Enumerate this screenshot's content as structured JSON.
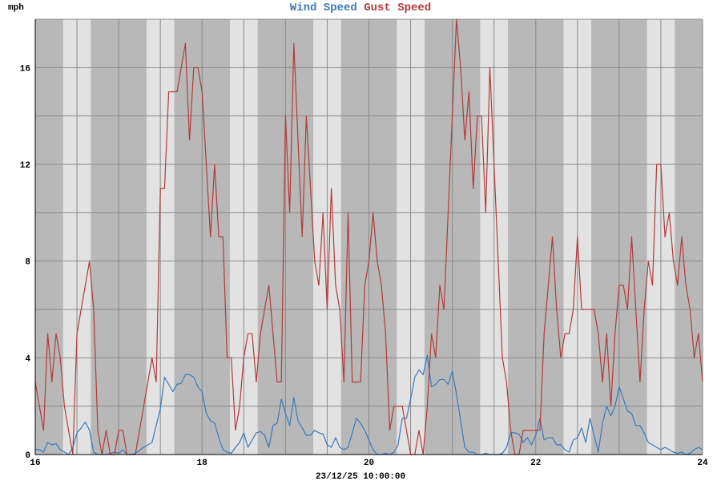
{
  "chart_data": {
    "type": "line",
    "title": [
      "Wind Speed",
      "Gust Speed"
    ],
    "ylabel": "mph",
    "xlabel": "23/12/25 10:00:00",
    "xlim": [
      16,
      24
    ],
    "ylim": [
      0,
      18
    ],
    "x_ticks": [
      16,
      18,
      20,
      22,
      24
    ],
    "y_ticks": [
      0,
      4,
      8,
      12,
      16
    ],
    "grid": true,
    "colors": {
      "wind": "#3a7ab8",
      "gust": "#b23a3a",
      "band_dark": "#b8b8b8",
      "band_light": "#e2e2e2",
      "grid": "#8a8a8a"
    },
    "series": [
      {
        "name": "Wind Speed",
        "color": "#3a7ab8",
        "points": [
          [
            16.0,
            0.2
          ],
          [
            16.05,
            0.2
          ],
          [
            16.1,
            0.1
          ],
          [
            16.15,
            0.5
          ],
          [
            16.2,
            0.4
          ],
          [
            16.25,
            0.45
          ],
          [
            16.3,
            0.2
          ],
          [
            16.35,
            0.1
          ],
          [
            16.4,
            0.0
          ],
          [
            16.45,
            0.3
          ],
          [
            16.5,
            0.9
          ],
          [
            16.55,
            1.1
          ],
          [
            16.6,
            1.35
          ],
          [
            16.65,
            1.0
          ],
          [
            16.7,
            0.1
          ],
          [
            16.75,
            0.0
          ],
          [
            16.8,
            0.0
          ],
          [
            16.85,
            0.0
          ],
          [
            16.9,
            0.05
          ],
          [
            16.95,
            0.1
          ],
          [
            17.0,
            0.05
          ],
          [
            17.05,
            0.2
          ],
          [
            17.1,
            0.0
          ],
          [
            17.15,
            0.0
          ],
          [
            17.2,
            0.05
          ],
          [
            17.3,
            0.3
          ],
          [
            17.35,
            0.4
          ],
          [
            17.4,
            0.5
          ],
          [
            17.45,
            1.2
          ],
          [
            17.5,
            1.9
          ],
          [
            17.55,
            3.2
          ],
          [
            17.6,
            2.9
          ],
          [
            17.65,
            2.6
          ],
          [
            17.7,
            2.9
          ],
          [
            17.75,
            2.95
          ],
          [
            17.8,
            3.3
          ],
          [
            17.85,
            3.3
          ],
          [
            17.9,
            3.2
          ],
          [
            17.95,
            2.8
          ],
          [
            18.0,
            2.6
          ],
          [
            18.05,
            1.7
          ],
          [
            18.1,
            1.4
          ],
          [
            18.15,
            1.3
          ],
          [
            18.2,
            0.7
          ],
          [
            18.25,
            0.2
          ],
          [
            18.3,
            0.1
          ],
          [
            18.35,
            0.05
          ],
          [
            18.4,
            0.3
          ],
          [
            18.45,
            0.5
          ],
          [
            18.5,
            0.9
          ],
          [
            18.55,
            0.3
          ],
          [
            18.6,
            0.6
          ],
          [
            18.65,
            0.9
          ],
          [
            18.7,
            0.95
          ],
          [
            18.75,
            0.8
          ],
          [
            18.8,
            0.3
          ],
          [
            18.85,
            1.2
          ],
          [
            18.9,
            1.3
          ],
          [
            18.95,
            2.3
          ],
          [
            19.0,
            1.7
          ],
          [
            19.05,
            1.2
          ],
          [
            19.1,
            2.35
          ],
          [
            19.15,
            1.4
          ],
          [
            19.2,
            1.1
          ],
          [
            19.25,
            0.8
          ],
          [
            19.3,
            0.8
          ],
          [
            19.35,
            1.0
          ],
          [
            19.4,
            0.9
          ],
          [
            19.45,
            0.85
          ],
          [
            19.5,
            0.4
          ],
          [
            19.55,
            0.3
          ],
          [
            19.6,
            0.7
          ],
          [
            19.65,
            0.3
          ],
          [
            19.7,
            0.2
          ],
          [
            19.75,
            0.3
          ],
          [
            19.8,
            0.9
          ],
          [
            19.85,
            1.5
          ],
          [
            19.9,
            1.3
          ],
          [
            19.95,
            1.0
          ],
          [
            20.0,
            0.6
          ],
          [
            20.05,
            0.2
          ],
          [
            20.1,
            0.0
          ],
          [
            20.15,
            0.0
          ],
          [
            20.2,
            0.05
          ],
          [
            20.25,
            0.0
          ],
          [
            20.3,
            0.1
          ],
          [
            20.35,
            0.4
          ],
          [
            20.4,
            1.5
          ],
          [
            20.45,
            1.5
          ],
          [
            20.5,
            2.3
          ],
          [
            20.55,
            3.2
          ],
          [
            20.6,
            3.5
          ],
          [
            20.65,
            3.3
          ],
          [
            20.7,
            4.1
          ],
          [
            20.75,
            2.8
          ],
          [
            20.8,
            2.9
          ],
          [
            20.85,
            3.1
          ],
          [
            20.9,
            3.1
          ],
          [
            20.95,
            2.9
          ],
          [
            21.0,
            3.45
          ],
          [
            21.05,
            2.5
          ],
          [
            21.1,
            1.4
          ],
          [
            21.15,
            0.3
          ],
          [
            21.2,
            0.1
          ],
          [
            21.25,
            0.1
          ],
          [
            21.3,
            0.0
          ],
          [
            21.35,
            0.0
          ],
          [
            21.4,
            0.05
          ],
          [
            21.45,
            0.0
          ],
          [
            21.5,
            0.0
          ],
          [
            21.55,
            0.0
          ],
          [
            21.6,
            0.05
          ],
          [
            21.65,
            0.3
          ],
          [
            21.7,
            0.9
          ],
          [
            21.75,
            0.9
          ],
          [
            21.8,
            0.85
          ],
          [
            21.85,
            0.5
          ],
          [
            21.9,
            0.7
          ],
          [
            21.95,
            0.4
          ],
          [
            22.0,
            0.8
          ],
          [
            22.05,
            1.5
          ],
          [
            22.1,
            0.6
          ],
          [
            22.15,
            0.7
          ],
          [
            22.2,
            0.7
          ],
          [
            22.25,
            0.4
          ],
          [
            22.3,
            0.4
          ],
          [
            22.35,
            0.2
          ],
          [
            22.4,
            0.1
          ],
          [
            22.45,
            0.6
          ],
          [
            22.5,
            0.7
          ],
          [
            22.55,
            1.1
          ],
          [
            22.6,
            0.5
          ],
          [
            22.65,
            1.5
          ],
          [
            22.7,
            0.8
          ],
          [
            22.75,
            0.1
          ],
          [
            22.8,
            1.3
          ],
          [
            22.85,
            2.0
          ],
          [
            22.9,
            1.6
          ],
          [
            22.95,
            2.0
          ],
          [
            23.0,
            2.8
          ],
          [
            23.05,
            2.3
          ],
          [
            23.1,
            1.8
          ],
          [
            23.15,
            1.7
          ],
          [
            23.2,
            1.2
          ],
          [
            23.25,
            1.2
          ],
          [
            23.3,
            0.9
          ],
          [
            23.35,
            0.5
          ],
          [
            23.4,
            0.4
          ],
          [
            23.45,
            0.3
          ],
          [
            23.5,
            0.2
          ],
          [
            23.55,
            0.3
          ],
          [
            23.6,
            0.2
          ],
          [
            23.65,
            0.1
          ],
          [
            23.7,
            0.05
          ],
          [
            23.75,
            0.1
          ],
          [
            23.8,
            0.0
          ],
          [
            23.85,
            0.05
          ],
          [
            23.9,
            0.2
          ],
          [
            23.95,
            0.3
          ],
          [
            24.0,
            0.2
          ]
        ]
      },
      {
        "name": "Gust Speed",
        "color": "#b23a3a",
        "points": [
          [
            16.0,
            3.0
          ],
          [
            16.05,
            2.0
          ],
          [
            16.1,
            1.0
          ],
          [
            16.15,
            5.0
          ],
          [
            16.2,
            3.0
          ],
          [
            16.25,
            5.0
          ],
          [
            16.3,
            4.0
          ],
          [
            16.35,
            2.0
          ],
          [
            16.4,
            1.0
          ],
          [
            16.45,
            0.0
          ],
          [
            16.5,
            5.0
          ],
          [
            16.55,
            6.0
          ],
          [
            16.6,
            7.0
          ],
          [
            16.65,
            8.0
          ],
          [
            16.7,
            6.0
          ],
          [
            16.75,
            1.0
          ],
          [
            16.8,
            0.0
          ],
          [
            16.85,
            1.0
          ],
          [
            16.9,
            0.0
          ],
          [
            16.95,
            0.0
          ],
          [
            17.0,
            1.0
          ],
          [
            17.05,
            1.0
          ],
          [
            17.1,
            0.0
          ],
          [
            17.15,
            0.0
          ],
          [
            17.2,
            0.0
          ],
          [
            17.3,
            2.0
          ],
          [
            17.35,
            3.0
          ],
          [
            17.4,
            4.0
          ],
          [
            17.45,
            3.0
          ],
          [
            17.5,
            11.0
          ],
          [
            17.55,
            11.0
          ],
          [
            17.6,
            15.0
          ],
          [
            17.65,
            15.0
          ],
          [
            17.7,
            15.0
          ],
          [
            17.75,
            16.0
          ],
          [
            17.8,
            17.0
          ],
          [
            17.85,
            13.0
          ],
          [
            17.9,
            16.0
          ],
          [
            17.95,
            16.0
          ],
          [
            18.0,
            15.0
          ],
          [
            18.05,
            12.0
          ],
          [
            18.1,
            9.0
          ],
          [
            18.15,
            12.0
          ],
          [
            18.2,
            9.0
          ],
          [
            18.25,
            9.0
          ],
          [
            18.3,
            4.0
          ],
          [
            18.35,
            4.0
          ],
          [
            18.4,
            1.0
          ],
          [
            18.45,
            2.0
          ],
          [
            18.5,
            4.0
          ],
          [
            18.55,
            5.0
          ],
          [
            18.6,
            5.0
          ],
          [
            18.65,
            3.0
          ],
          [
            18.7,
            5.0
          ],
          [
            18.75,
            6.0
          ],
          [
            18.8,
            7.0
          ],
          [
            18.85,
            5.0
          ],
          [
            18.9,
            3.0
          ],
          [
            18.95,
            3.0
          ],
          [
            19.0,
            14.0
          ],
          [
            19.05,
            10.0
          ],
          [
            19.1,
            17.0
          ],
          [
            19.15,
            13.0
          ],
          [
            19.2,
            9.0
          ],
          [
            19.25,
            14.0
          ],
          [
            19.3,
            11.0
          ],
          [
            19.35,
            8.0
          ],
          [
            19.4,
            7.0
          ],
          [
            19.45,
            10.0
          ],
          [
            19.5,
            6.0
          ],
          [
            19.55,
            11.0
          ],
          [
            19.6,
            7.0
          ],
          [
            19.65,
            6.0
          ],
          [
            19.7,
            3.0
          ],
          [
            19.75,
            10.0
          ],
          [
            19.8,
            3.0
          ],
          [
            19.85,
            3.0
          ],
          [
            19.9,
            3.0
          ],
          [
            19.95,
            7.0
          ],
          [
            20.0,
            8.0
          ],
          [
            20.05,
            10.0
          ],
          [
            20.1,
            8.0
          ],
          [
            20.15,
            7.0
          ],
          [
            20.2,
            5.0
          ],
          [
            20.25,
            1.0
          ],
          [
            20.3,
            2.0
          ],
          [
            20.35,
            2.0
          ],
          [
            20.4,
            2.0
          ],
          [
            20.45,
            1.0
          ],
          [
            20.5,
            0.0
          ],
          [
            20.55,
            0.0
          ],
          [
            20.6,
            1.0
          ],
          [
            20.65,
            0.0
          ],
          [
            20.7,
            2.0
          ],
          [
            20.75,
            5.0
          ],
          [
            20.8,
            4.0
          ],
          [
            20.85,
            7.0
          ],
          [
            20.9,
            6.0
          ],
          [
            20.95,
            10.0
          ],
          [
            21.0,
            14.0
          ],
          [
            21.05,
            18.0
          ],
          [
            21.1,
            16.0
          ],
          [
            21.15,
            13.0
          ],
          [
            21.2,
            15.0
          ],
          [
            21.25,
            11.0
          ],
          [
            21.3,
            14.0
          ],
          [
            21.35,
            14.0
          ],
          [
            21.4,
            10.0
          ],
          [
            21.45,
            16.0
          ],
          [
            21.5,
            12.0
          ],
          [
            21.55,
            8.0
          ],
          [
            21.6,
            4.0
          ],
          [
            21.65,
            3.0
          ],
          [
            21.7,
            1.0
          ],
          [
            21.75,
            0.0
          ],
          [
            21.8,
            0.0
          ],
          [
            21.85,
            1.0
          ],
          [
            21.9,
            1.0
          ],
          [
            21.95,
            1.0
          ],
          [
            22.0,
            1.0
          ],
          [
            22.05,
            1.0
          ],
          [
            22.1,
            5.0
          ],
          [
            22.15,
            7.0
          ],
          [
            22.2,
            9.0
          ],
          [
            22.25,
            6.0
          ],
          [
            22.3,
            4.0
          ],
          [
            22.35,
            5.0
          ],
          [
            22.4,
            5.0
          ],
          [
            22.45,
            6.0
          ],
          [
            22.5,
            9.0
          ],
          [
            22.55,
            6.0
          ],
          [
            22.6,
            6.0
          ],
          [
            22.65,
            6.0
          ],
          [
            22.7,
            6.0
          ],
          [
            22.75,
            5.0
          ],
          [
            22.8,
            3.0
          ],
          [
            22.85,
            5.0
          ],
          [
            22.9,
            2.0
          ],
          [
            22.95,
            5.0
          ],
          [
            23.0,
            7.0
          ],
          [
            23.05,
            7.0
          ],
          [
            23.1,
            6.0
          ],
          [
            23.15,
            9.0
          ],
          [
            23.2,
            6.0
          ],
          [
            23.25,
            3.0
          ],
          [
            23.3,
            6.0
          ],
          [
            23.35,
            8.0
          ],
          [
            23.4,
            7.0
          ],
          [
            23.45,
            12.0
          ],
          [
            23.5,
            12.0
          ],
          [
            23.55,
            9.0
          ],
          [
            23.6,
            10.0
          ],
          [
            23.65,
            8.0
          ],
          [
            23.7,
            7.0
          ],
          [
            23.75,
            9.0
          ],
          [
            23.8,
            7.0
          ],
          [
            23.85,
            6.0
          ],
          [
            23.9,
            4.0
          ],
          [
            23.95,
            5.0
          ],
          [
            24.0,
            3.0
          ]
        ]
      }
    ]
  }
}
